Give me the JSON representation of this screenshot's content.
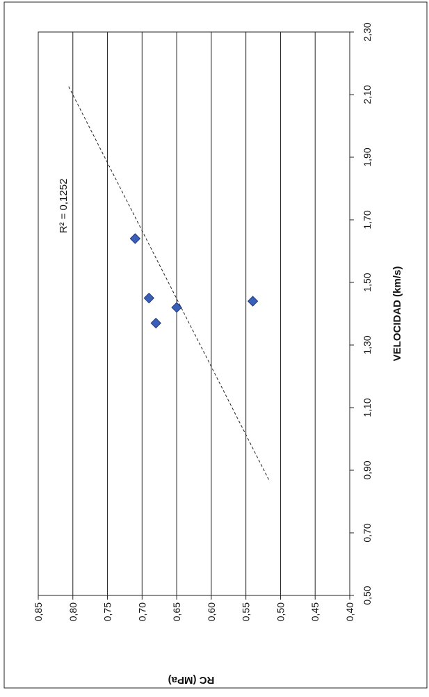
{
  "chart_data": {
    "type": "scatter",
    "rotation": "90deg-counterclockwise",
    "xlabel": "VELOCIDAD (km/s)",
    "ylabel": "RC (MPa)",
    "xlim": [
      0.5,
      2.3
    ],
    "ylim": [
      0.4,
      0.85
    ],
    "x_ticks": [
      "0,50",
      "0,70",
      "0,90",
      "1,10",
      "1,30",
      "1,50",
      "1,70",
      "1,90",
      "2,10",
      "2,30"
    ],
    "y_ticks": [
      "0,40",
      "0,45",
      "0,50",
      "0,55",
      "0,60",
      "0,65",
      "0,70",
      "0,75",
      "0,80",
      "0,85"
    ],
    "grid": "horizontal",
    "points": [
      {
        "x": 1.64,
        "y": 0.71
      },
      {
        "x": 1.45,
        "y": 0.69
      },
      {
        "x": 1.37,
        "y": 0.68
      },
      {
        "x": 1.42,
        "y": 0.65
      },
      {
        "x": 1.44,
        "y": 0.54
      }
    ],
    "trendline": {
      "x_start": 0.87,
      "y_start": 0.517,
      "x_end": 2.13,
      "y_end": 0.807,
      "style": "dashed"
    },
    "annotation": "R² = 0,1252",
    "marker_color": "#3a5fb8",
    "marker_edge_color": "#1f3a80"
  }
}
